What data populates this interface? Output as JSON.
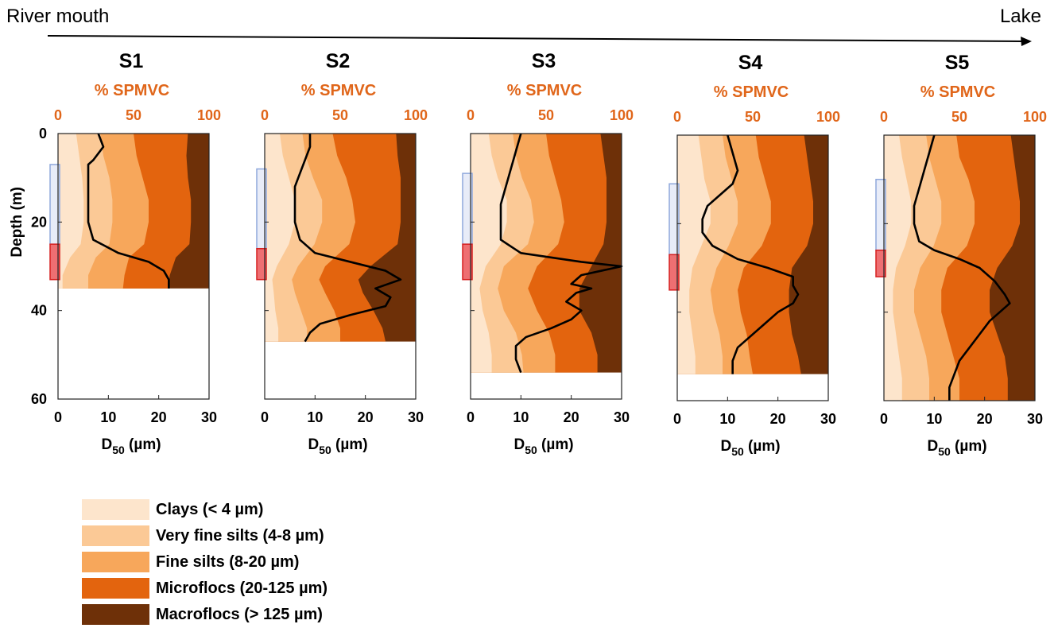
{
  "header": {
    "left_label": "River mouth",
    "right_label": "Lake"
  },
  "legend": [
    {
      "label": "Clays (< 4 µm)",
      "color": "#fde5cc"
    },
    {
      "label": "Very fine silts (4-8 µm)",
      "color": "#fbc996"
    },
    {
      "label": "Fine silts (8-20 µm)",
      "color": "#f7a75b"
    },
    {
      "label": "Microflocs (20-125 µm)",
      "color": "#e3640e"
    },
    {
      "label": "Macroflocs (> 125 µm)",
      "color": "#6e3008"
    }
  ],
  "chart_data": [
    {
      "type": "area",
      "title": "S1",
      "top_axis_label": "% SPMVC",
      "top_ticks": [
        "0",
        "50",
        "100"
      ],
      "xlabel": "D50 (µm)",
      "ylabel": "Depth (m)",
      "x_ticks": [
        "0",
        "10",
        "20",
        "30"
      ],
      "y_ticks": [
        "0",
        "20",
        "40",
        "60"
      ],
      "ylim": [
        0,
        60
      ],
      "xlim_d50": [
        0,
        30
      ],
      "data_max_depth": 35,
      "depth": [
        0,
        5,
        10,
        15,
        20,
        25,
        28,
        32,
        35
      ],
      "cumulative_percent": {
        "clays": [
          12,
          14,
          16,
          17,
          17,
          15,
          8,
          3,
          3
        ],
        "very_fine_silts": [
          28,
          30,
          34,
          36,
          36,
          34,
          25,
          20,
          20
        ],
        "fine_silts": [
          50,
          52,
          56,
          60,
          60,
          57,
          47,
          44,
          43
        ],
        "microflocs": [
          86,
          85,
          86,
          88,
          88,
          87,
          78,
          74,
          73
        ]
      },
      "d50_profile": {
        "depth": [
          0,
          3,
          6,
          7,
          9,
          12,
          16,
          20,
          24,
          27,
          29,
          31,
          33,
          35
        ],
        "d50": [
          8,
          9,
          7,
          6,
          6,
          6,
          6,
          6,
          7,
          12,
          18,
          21,
          22,
          22
        ]
      },
      "shaded_zones": [
        {
          "type": "blue",
          "depth_range": [
            7,
            25
          ]
        },
        {
          "type": "red",
          "depth_range": [
            25,
            33
          ]
        }
      ]
    },
    {
      "type": "area",
      "title": "S2",
      "top_axis_label": "% SPMVC",
      "top_ticks": [
        "0",
        "50",
        "100"
      ],
      "xlabel": "D50 (µm)",
      "ylabel": "",
      "x_ticks": [
        "0",
        "10",
        "20",
        "30"
      ],
      "y_ticks": [],
      "ylim": [
        0,
        60
      ],
      "xlim_d50": [
        0,
        30
      ],
      "data_max_depth": 47,
      "depth": [
        0,
        5,
        10,
        15,
        20,
        25,
        30,
        33,
        36,
        40,
        44,
        47
      ],
      "cumulative_percent": {
        "clays": [
          10,
          12,
          16,
          20,
          20,
          16,
          8,
          5,
          6,
          7,
          9,
          9
        ],
        "very_fine_silts": [
          25,
          27,
          32,
          38,
          38,
          33,
          22,
          18,
          20,
          24,
          28,
          28
        ],
        "fine_silts": [
          45,
          48,
          54,
          58,
          60,
          56,
          40,
          36,
          40,
          46,
          50,
          50
        ],
        "microflocs": [
          87,
          88,
          90,
          90,
          90,
          88,
          70,
          62,
          65,
          72,
          78,
          80
        ]
      },
      "d50_profile": {
        "depth": [
          0,
          3,
          6,
          9,
          12,
          16,
          20,
          24,
          27,
          29,
          31,
          33,
          35,
          37,
          39,
          41,
          43,
          45,
          47
        ],
        "d50": [
          9,
          9,
          8,
          7,
          6,
          6,
          6,
          7,
          10,
          17,
          24,
          27,
          22,
          25,
          24,
          17,
          11,
          9,
          8
        ]
      },
      "shaded_zones": [
        {
          "type": "blue",
          "depth_range": [
            8,
            26
          ]
        },
        {
          "type": "red",
          "depth_range": [
            26,
            33
          ]
        }
      ]
    },
    {
      "type": "area",
      "title": "S3",
      "top_axis_label": "% SPMVC",
      "top_ticks": [
        "0",
        "50",
        "100"
      ],
      "xlabel": "D50 (µm)",
      "ylabel": "",
      "x_ticks": [
        "0",
        "10",
        "20",
        "30"
      ],
      "y_ticks": [],
      "ylim": [
        0,
        60
      ],
      "xlim_d50": [
        0,
        30
      ],
      "data_max_depth": 54,
      "depth": [
        0,
        5,
        10,
        15,
        20,
        25,
        30,
        35,
        40,
        45,
        50,
        54
      ],
      "cumulative_percent": {
        "clays": [
          12,
          14,
          18,
          24,
          24,
          20,
          10,
          6,
          8,
          12,
          14,
          14
        ],
        "very_fine_silts": [
          28,
          30,
          34,
          40,
          42,
          38,
          22,
          18,
          22,
          30,
          34,
          35
        ],
        "fine_silts": [
          50,
          52,
          56,
          60,
          62,
          58,
          44,
          38,
          44,
          52,
          56,
          56
        ],
        "microflocs": [
          86,
          88,
          90,
          90,
          90,
          88,
          80,
          72,
          72,
          80,
          84,
          84
        ]
      },
      "d50_profile": {
        "depth": [
          0,
          4,
          8,
          12,
          16,
          20,
          24,
          27,
          29,
          30,
          31,
          32,
          34,
          35,
          36,
          38,
          40,
          42,
          44,
          46,
          48,
          51,
          54
        ],
        "d50": [
          10,
          9,
          8,
          7,
          6,
          6,
          6,
          10,
          22,
          30,
          26,
          22,
          20,
          24,
          21,
          19,
          22,
          20,
          16,
          11,
          9,
          9,
          10
        ]
      },
      "shaded_zones": [
        {
          "type": "blue",
          "depth_range": [
            9,
            25
          ]
        },
        {
          "type": "red",
          "depth_range": [
            25,
            33
          ]
        }
      ]
    },
    {
      "type": "area",
      "title": "S4",
      "top_axis_label": "% SPMVC",
      "top_ticks": [
        "0",
        "50",
        "100"
      ],
      "xlabel": "D50 (µm)",
      "ylabel": "",
      "x_ticks": [
        "0",
        "10",
        "20",
        "30"
      ],
      "y_ticks": [],
      "ylim": [
        0,
        60
      ],
      "xlim_d50": [
        0,
        30
      ],
      "data_max_depth": 54,
      "depth": [
        0,
        5,
        10,
        15,
        20,
        25,
        30,
        35,
        40,
        45,
        50,
        54
      ],
      "cumulative_percent": {
        "clays": [
          14,
          16,
          18,
          22,
          22,
          16,
          10,
          8,
          8,
          10,
          12,
          12
        ],
        "very_fine_silts": [
          30,
          32,
          36,
          40,
          40,
          34,
          26,
          22,
          24,
          28,
          30,
          30
        ],
        "fine_silts": [
          52,
          54,
          58,
          62,
          62,
          56,
          44,
          40,
          42,
          46,
          48,
          50
        ],
        "microflocs": [
          84,
          86,
          88,
          90,
          90,
          86,
          76,
          74,
          74,
          76,
          80,
          82
        ]
      },
      "d50_profile": {
        "depth": [
          0,
          4,
          8,
          11,
          13,
          16,
          19,
          22,
          25,
          28,
          30,
          32,
          34,
          36,
          38,
          40,
          43,
          46,
          48,
          51,
          54
        ],
        "d50": [
          10,
          11,
          12,
          11,
          9,
          6,
          5,
          5,
          7,
          12,
          18,
          23,
          23,
          24,
          23,
          20,
          17,
          14,
          12,
          11,
          11
        ]
      },
      "shaded_zones": [
        {
          "type": "blue",
          "depth_range": [
            11,
            27
          ]
        },
        {
          "type": "red",
          "depth_range": [
            27,
            35
          ]
        }
      ]
    },
    {
      "type": "area",
      "title": "S5",
      "top_axis_label": "% SPMVC",
      "top_ticks": [
        "0",
        "50",
        "100"
      ],
      "xlabel": "D50 (µm)",
      "ylabel": "",
      "x_ticks": [
        "0",
        "10",
        "20",
        "30"
      ],
      "y_ticks": [],
      "ylim": [
        0,
        60
      ],
      "xlim_d50": [
        0,
        30
      ],
      "data_max_depth": 60,
      "depth": [
        0,
        5,
        10,
        15,
        20,
        25,
        30,
        35,
        40,
        45,
        50,
        55,
        60
      ],
      "cumulative_percent": {
        "clays": [
          10,
          12,
          15,
          18,
          18,
          14,
          8,
          6,
          6,
          8,
          10,
          12,
          12
        ],
        "very_fine_silts": [
          28,
          30,
          34,
          38,
          38,
          33,
          24,
          20,
          20,
          24,
          28,
          30,
          30
        ],
        "fine_silts": [
          48,
          50,
          56,
          60,
          60,
          55,
          42,
          38,
          38,
          42,
          46,
          50,
          50
        ],
        "microflocs": [
          84,
          86,
          88,
          90,
          90,
          85,
          75,
          70,
          70,
          75,
          80,
          82,
          82
        ]
      },
      "d50_profile": {
        "depth": [
          0,
          4,
          8,
          12,
          16,
          20,
          24,
          26,
          28,
          30,
          33,
          36,
          38,
          40,
          42,
          45,
          48,
          51,
          54,
          57,
          60
        ],
        "d50": [
          10,
          9,
          8,
          7,
          6,
          6,
          7,
          10,
          15,
          19,
          22,
          24,
          25,
          23,
          21,
          19,
          17,
          15,
          14,
          13,
          13
        ]
      },
      "shaded_zones": [
        {
          "type": "blue",
          "depth_range": [
            10,
            26
          ]
        },
        {
          "type": "red",
          "depth_range": [
            26,
            32
          ]
        }
      ]
    }
  ]
}
